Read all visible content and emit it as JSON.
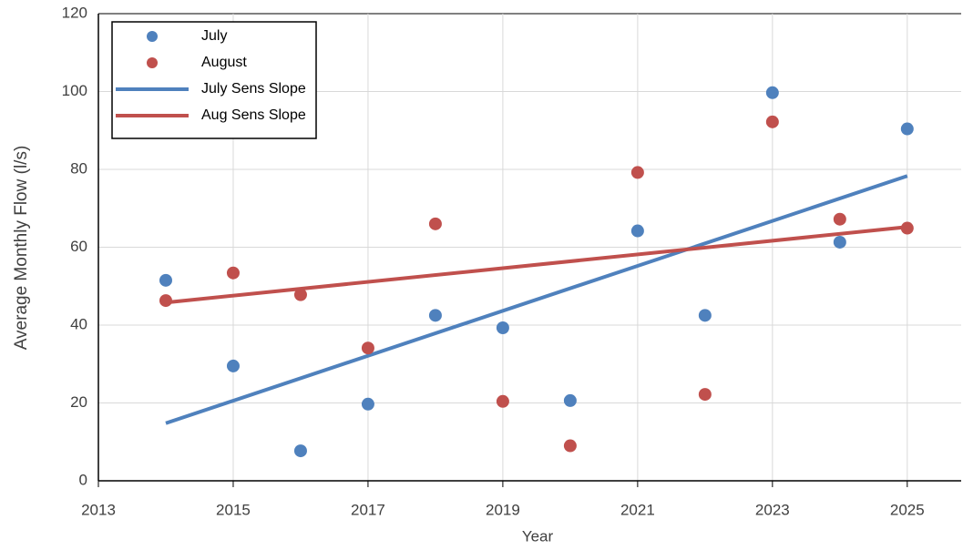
{
  "chart_data": {
    "type": "scatter",
    "xlabel": "Year",
    "ylabel": "Average Monthly Flow (l/s)",
    "xlim": [
      2013,
      2025.8
    ],
    "xticks": [
      2013,
      2015,
      2017,
      2019,
      2021,
      2023,
      2025
    ],
    "ylim": [
      0,
      120
    ],
    "yticks": [
      0,
      20,
      40,
      60,
      80,
      100,
      120
    ],
    "grid": true,
    "legend": "upper left",
    "series": [
      {
        "name": "July",
        "color": "#4f81bd",
        "style": "marker",
        "x": [
          2014,
          2015,
          2016,
          2017,
          2018,
          2019,
          2020,
          2021,
          2022,
          2023,
          2024,
          2025
        ],
        "values": [
          51.5,
          29.5,
          7.7,
          19.7,
          42.5,
          39.3,
          20.6,
          64.2,
          42.5,
          99.7,
          61.3,
          90.4
        ]
      },
      {
        "name": "August",
        "color": "#c0504d",
        "style": "marker",
        "x": [
          2014,
          2015,
          2016,
          2017,
          2018,
          2019,
          2020,
          2021,
          2022,
          2023,
          2024,
          2025
        ],
        "values": [
          46.3,
          53.4,
          47.8,
          34.1,
          66.0,
          20.4,
          9.0,
          79.2,
          22.2,
          92.2,
          67.2,
          64.9
        ]
      },
      {
        "name": "July Sens Slope",
        "color": "#4f81bd",
        "style": "line",
        "x": [
          2014,
          2025
        ],
        "values": [
          14.8,
          78.3
        ]
      },
      {
        "name": "Aug Sens Slope",
        "color": "#c0504d",
        "style": "line",
        "x": [
          2014,
          2025
        ],
        "values": [
          45.8,
          65.2
        ]
      }
    ]
  }
}
